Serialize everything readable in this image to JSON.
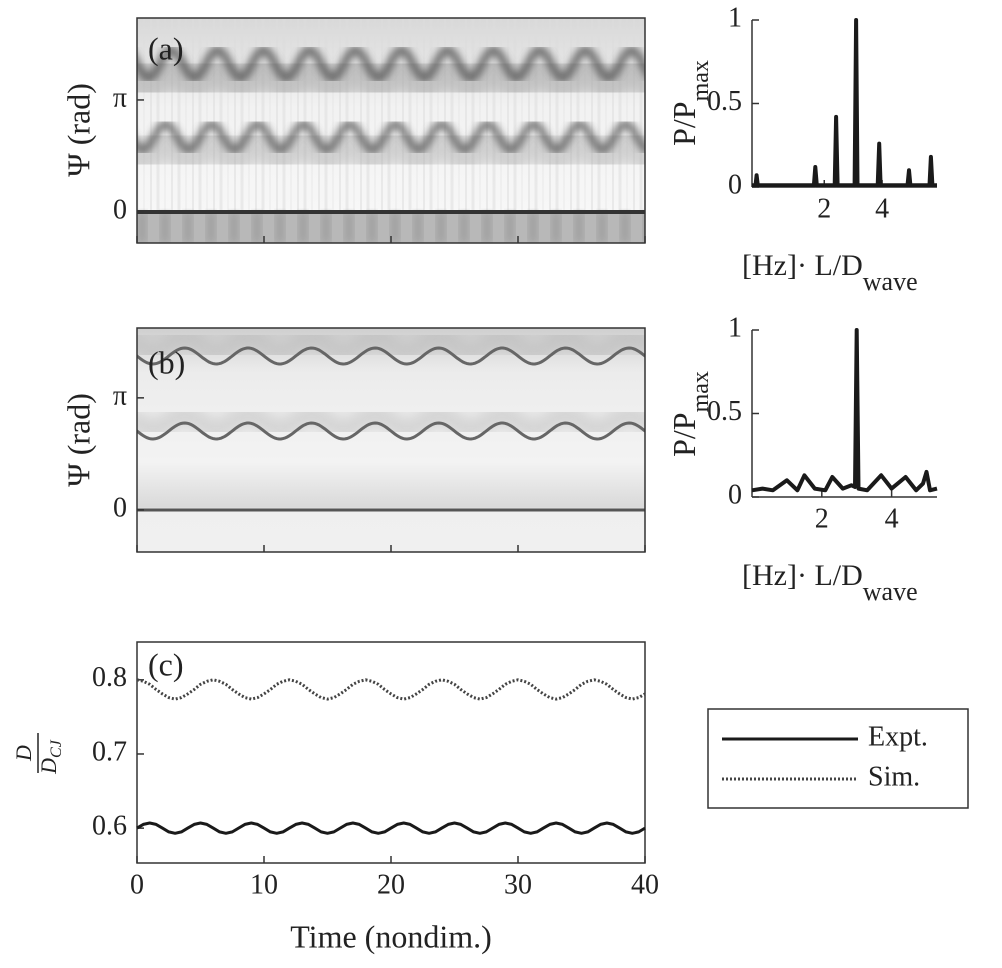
{
  "chart_data": [
    {
      "type": "heatmap",
      "panel_label": "(a)",
      "ylabel": "Ψ (rad)",
      "box": true,
      "xlim": [
        0,
        40
      ],
      "xticks": [
        0,
        10,
        20,
        30,
        40
      ],
      "ylim": [
        -0.87,
        5.44
      ],
      "yticks": [
        0,
        {
          "value": 3.1416,
          "label": "π"
        }
      ]
    },
    {
      "type": "line",
      "ylabel": "P/P",
      "ylabel_sub": "max",
      "xlabel": "[Hz]· L/D",
      "xlabel_sub": "wave",
      "box": false,
      "color": "#1a1a1a",
      "x": [
        -0.5,
        -0.38,
        -0.34,
        -0.3,
        1.64,
        1.69,
        1.74,
        2.36,
        2.41,
        2.46,
        3.05,
        3.1,
        3.15,
        3.85,
        3.9,
        3.95,
        4.88,
        4.93,
        4.98,
        5.64,
        5.69,
        5.74,
        5.9
      ],
      "values": [
        0.01,
        0.01,
        0.07,
        0.01,
        0.01,
        0.12,
        0.01,
        0.01,
        0.42,
        0.01,
        0.01,
        1,
        0.01,
        0.01,
        0.26,
        0.01,
        0.01,
        0.1,
        0.01,
        0.01,
        0.18,
        0.01,
        0.01
      ],
      "xlim": [
        -0.5,
        5.9
      ],
      "xticks": [
        2,
        4
      ],
      "ylim": [
        0,
        1
      ],
      "yticks": [
        0,
        0.5,
        1
      ]
    },
    {
      "type": "heatmap",
      "panel_label": "(b)",
      "ylabel": "Ψ (rad)",
      "box": true,
      "xlim": [
        0,
        40
      ],
      "xticks": [
        0,
        10,
        20,
        30,
        40
      ],
      "ylim": [
        -1.18,
        5.1
      ],
      "yticks": [
        0,
        {
          "value": 3.1416,
          "label": "π"
        }
      ]
    },
    {
      "type": "line",
      "ylabel": "P/P",
      "ylabel_sub": "max",
      "xlabel": "[Hz]· L/D",
      "xlabel_sub": "wave",
      "box": false,
      "color": "#1a1a1a",
      "x": [
        0,
        0.3,
        0.6,
        1.0,
        1.3,
        1.5,
        1.8,
        2.1,
        2.3,
        2.6,
        2.85,
        2.95,
        3.0,
        3.05,
        3.3,
        3.7,
        4.0,
        4.4,
        4.7,
        4.9,
        5.0,
        5.1,
        5.3
      ],
      "values": [
        0.04,
        0.05,
        0.04,
        0.1,
        0.04,
        0.13,
        0.05,
        0.04,
        0.12,
        0.05,
        0.07,
        0.06,
        1,
        0.05,
        0.04,
        0.13,
        0.05,
        0.12,
        0.04,
        0.08,
        0.15,
        0.04,
        0.05
      ],
      "xlim": [
        0,
        5.3
      ],
      "xticks": [
        2,
        4
      ],
      "ylim": [
        0,
        1
      ],
      "yticks": [
        0,
        0.5,
        1
      ]
    },
    {
      "type": "line",
      "panel_label": "(c)",
      "xlabel": "Time (nondim.)",
      "ylabel_num": "D",
      "ylabel_den": "D",
      "ylabel_den_sub": "CJ",
      "box": true,
      "legend": "outside right",
      "xlim": [
        0,
        40
      ],
      "xticks": [
        0,
        10,
        20,
        30,
        40
      ],
      "ylim": [
        0.553,
        0.851
      ],
      "yticks": [
        0.6,
        0.7,
        0.8
      ],
      "x": [
        0,
        0.5,
        1,
        1.5,
        2,
        2.5,
        3,
        3.5,
        4,
        4.5,
        5,
        5.5,
        6,
        6.5,
        7,
        7.5,
        8,
        8.5,
        9,
        9.5,
        10,
        10.5,
        11,
        11.5,
        12,
        12.5,
        13,
        13.5,
        14,
        14.5,
        15,
        15.5,
        16,
        16.5,
        17,
        17.5,
        18,
        18.5,
        19,
        19.5,
        20,
        20.5,
        21,
        21.5,
        22,
        22.5,
        23,
        23.5,
        24,
        24.5,
        25,
        25.5,
        26,
        26.5,
        27,
        27.5,
        28,
        28.5,
        29,
        29.5,
        30,
        30.5,
        31,
        31.5,
        32,
        32.5,
        33,
        33.5,
        34,
        34.5,
        35,
        35.5,
        36,
        36.5,
        37,
        37.5,
        38,
        38.5,
        39,
        39.5,
        40
      ],
      "series": [
        {
          "name": "Expt.",
          "color": "#1a1a1a",
          "linestyle": "solid",
          "values": [
            0.6,
            0.605,
            0.607,
            0.605,
            0.6,
            0.595,
            0.593,
            0.595,
            0.6,
            0.605,
            0.607,
            0.605,
            0.6,
            0.595,
            0.593,
            0.595,
            0.6,
            0.605,
            0.607,
            0.605,
            0.6,
            0.595,
            0.593,
            0.595,
            0.6,
            0.605,
            0.607,
            0.605,
            0.6,
            0.595,
            0.593,
            0.595,
            0.6,
            0.605,
            0.607,
            0.605,
            0.6,
            0.595,
            0.593,
            0.595,
            0.6,
            0.605,
            0.607,
            0.605,
            0.6,
            0.595,
            0.593,
            0.595,
            0.6,
            0.605,
            0.607,
            0.605,
            0.6,
            0.595,
            0.593,
            0.595,
            0.6,
            0.605,
            0.607,
            0.605,
            0.6,
            0.595,
            0.593,
            0.595,
            0.6,
            0.605,
            0.607,
            0.605,
            0.6,
            0.595,
            0.593,
            0.595,
            0.6,
            0.605,
            0.607,
            0.605,
            0.6,
            0.595,
            0.593,
            0.595,
            0.6
          ]
        },
        {
          "name": "Sim.",
          "color": "#444444",
          "linestyle": "dotted",
          "values": [
            0.8,
            0.798,
            0.794,
            0.787,
            0.781,
            0.776,
            0.774,
            0.776,
            0.781,
            0.787,
            0.794,
            0.798,
            0.8,
            0.798,
            0.794,
            0.787,
            0.781,
            0.776,
            0.774,
            0.776,
            0.781,
            0.787,
            0.794,
            0.798,
            0.8,
            0.798,
            0.794,
            0.787,
            0.781,
            0.776,
            0.774,
            0.776,
            0.781,
            0.787,
            0.794,
            0.798,
            0.8,
            0.798,
            0.794,
            0.787,
            0.781,
            0.776,
            0.774,
            0.776,
            0.781,
            0.787,
            0.794,
            0.798,
            0.8,
            0.798,
            0.794,
            0.787,
            0.781,
            0.776,
            0.774,
            0.776,
            0.781,
            0.787,
            0.794,
            0.798,
            0.8,
            0.798,
            0.794,
            0.787,
            0.781,
            0.776,
            0.774,
            0.776,
            0.781,
            0.787,
            0.794,
            0.798,
            0.8,
            0.798,
            0.794,
            0.787,
            0.781,
            0.776,
            0.774,
            0.776,
            0.781
          ]
        }
      ]
    }
  ]
}
